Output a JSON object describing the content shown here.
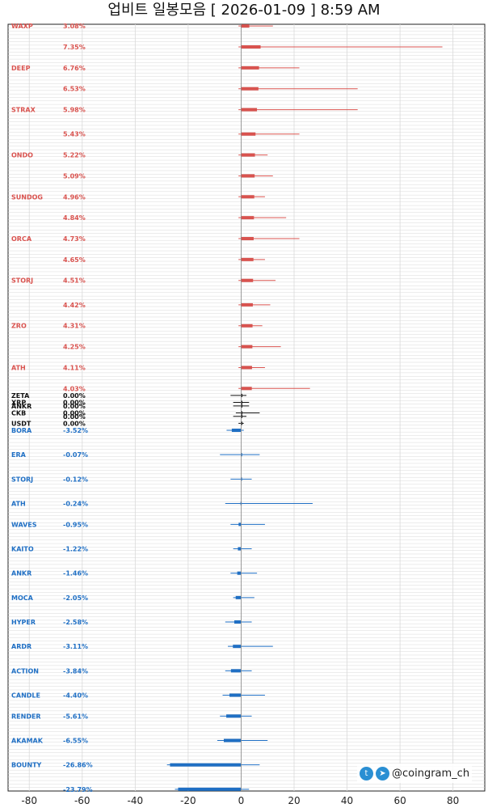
{
  "title": "업비트 일봉모음 [ 2026-01-09 ]  8:59 AM",
  "watermark": {
    "handle": "@coingram_ch",
    "icons": [
      "twitter-icon",
      "telegram-icon"
    ]
  },
  "colors": {
    "up": "#d9534f",
    "flat": "#111111",
    "down": "#1f6fc4",
    "grid": "#d9d9d9"
  },
  "chart_data": {
    "type": "bar",
    "title": "업비트 일봉모음 [ 2026-01-09 ]  8:59 AM",
    "xlim": [
      -88,
      92
    ],
    "xticks": [
      -80,
      -60,
      -40,
      -20,
      0,
      20,
      40,
      60,
      80
    ],
    "xlabel": "",
    "ylabel": "",
    "grid": true,
    "row_count": 220,
    "legend": "none",
    "series_note": "horizontal candle bars: body = open-close change %, wick = high/low range %",
    "labeled_rows": [
      {
        "ticker": "WAXP",
        "change": "3.08%",
        "value": 3.08,
        "low": -1.0,
        "high": 12.0
      },
      {
        "ticker": "BORA",
        "change": "-3.52%",
        "value": -3.52,
        "low": -5.5,
        "high": 1.0
      },
      {
        "ticker": "",
        "change": "7.35%",
        "value": 7.35,
        "low": -1.0,
        "high": 76.0
      },
      {
        "ticker": "DEEP",
        "change": "6.76%",
        "value": 6.76,
        "low": -1.0,
        "high": 22.0
      },
      {
        "ticker": "",
        "change": "6.53%",
        "value": 6.53,
        "low": -1.0,
        "high": 44.0
      },
      {
        "ticker": "STRAX",
        "change": "5.98%",
        "value": 5.98,
        "low": -1.0,
        "high": 44.0
      },
      {
        "ticker": "",
        "change": "5.43%",
        "value": 5.43,
        "low": -1.0,
        "high": 22.0
      },
      {
        "ticker": "ONDO",
        "change": "5.22%",
        "value": 5.22,
        "low": -1.0,
        "high": 10.0
      },
      {
        "ticker": "",
        "change": "5.09%",
        "value": 5.09,
        "low": -1.0,
        "high": 12.0
      },
      {
        "ticker": "SUNDOG",
        "change": "4.96%",
        "value": 4.96,
        "low": -1.0,
        "high": 9.0
      },
      {
        "ticker": "",
        "change": "4.84%",
        "value": 4.84,
        "low": -1.0,
        "high": 17.0
      },
      {
        "ticker": "ORCA",
        "change": "4.73%",
        "value": 4.73,
        "low": -1.0,
        "high": 22.0
      },
      {
        "ticker": "",
        "change": "4.65%",
        "value": 4.65,
        "low": -1.0,
        "high": 9.0
      },
      {
        "ticker": "STORJ",
        "change": "4.51%",
        "value": 4.51,
        "low": -1.0,
        "high": 13.0
      },
      {
        "ticker": "",
        "change": "4.42%",
        "value": 4.42,
        "low": -1.0,
        "high": 11.0
      },
      {
        "ticker": "ZRO",
        "change": "4.31%",
        "value": 4.31,
        "low": -1.0,
        "high": 8.0
      },
      {
        "ticker": "",
        "change": "4.25%",
        "value": 4.25,
        "low": -1.0,
        "high": 15.0
      },
      {
        "ticker": "ATH",
        "change": "4.11%",
        "value": 4.11,
        "low": -1.0,
        "high": 9.0
      },
      {
        "ticker": "",
        "change": "4.03%",
        "value": 4.03,
        "low": -1.0,
        "high": 26.0
      },
      {
        "ticker": "ZETA",
        "change": "0.00%",
        "value": 0.0,
        "low": -4.0,
        "high": 2.0
      },
      {
        "ticker": "XRP",
        "change": "0.00%",
        "value": 0.0,
        "low": -3.0,
        "high": 3.0
      },
      {
        "ticker": "ANKR",
        "change": "0.00%",
        "value": 0.0,
        "low": -3.0,
        "high": 3.0
      },
      {
        "ticker": "CKB",
        "change": "0.00%",
        "value": 0.0,
        "low": -2.0,
        "high": 7.0
      },
      {
        "ticker": "",
        "change": "0.00%",
        "value": 0.0,
        "low": -3.0,
        "high": 2.0
      },
      {
        "ticker": "USDT",
        "change": "0.00%",
        "value": 0.0,
        "low": -1.0,
        "high": 1.0
      },
      {
        "ticker": "ERA",
        "change": "-0.07%",
        "value": -0.07,
        "low": -8.0,
        "high": 7.0
      },
      {
        "ticker": "STORJ",
        "change": "-0.12%",
        "value": -0.12,
        "low": -4.0,
        "high": 4.0
      },
      {
        "ticker": "ATH",
        "change": "-0.24%",
        "value": -0.24,
        "low": -6.0,
        "high": 27.0
      },
      {
        "ticker": "WAVES",
        "change": "-0.95%",
        "value": -0.95,
        "low": -4.0,
        "high": 9.0
      },
      {
        "ticker": "KAITO",
        "change": "-1.22%",
        "value": -1.22,
        "low": -3.0,
        "high": 4.0
      },
      {
        "ticker": "ANKR",
        "change": "-1.46%",
        "value": -1.46,
        "low": -4.0,
        "high": 6.0
      },
      {
        "ticker": "MOCA",
        "change": "-2.05%",
        "value": -2.05,
        "low": -3.0,
        "high": 5.0
      },
      {
        "ticker": "HYPER",
        "change": "-2.58%",
        "value": -2.58,
        "low": -6.0,
        "high": 4.0
      },
      {
        "ticker": "ARDR",
        "change": "-3.11%",
        "value": -3.11,
        "low": -5.0,
        "high": 12.0
      },
      {
        "ticker": "ACTION",
        "change": "-3.84%",
        "value": -3.84,
        "low": -6.0,
        "high": 4.0
      },
      {
        "ticker": "CANDLE",
        "change": "-4.40%",
        "value": -4.4,
        "low": -7.0,
        "high": 9.0
      },
      {
        "ticker": "RENDER",
        "change": "-5.61%",
        "value": -5.61,
        "low": -8.0,
        "high": 4.0
      },
      {
        "ticker": "AKAMAK",
        "change": "-6.55%",
        "value": -6.55,
        "low": -9.0,
        "high": 10.0
      },
      {
        "ticker": "BOUNTY",
        "change": "-26.86%",
        "value": -26.86,
        "low": -28.0,
        "high": 7.0
      },
      {
        "ticker": "",
        "change": "-23.79%",
        "value": -23.79,
        "low": -25.0,
        "high": 3.0
      }
    ]
  }
}
